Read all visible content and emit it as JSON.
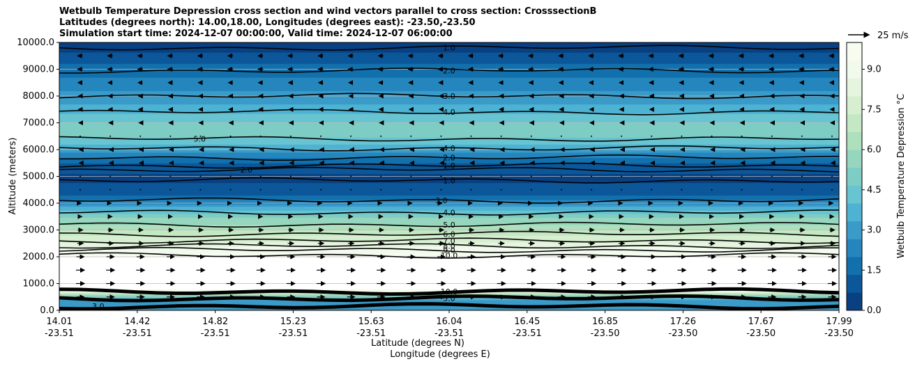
{
  "chart_data": {
    "type": "heatmap",
    "title_lines": [
      "Wetbulb Temperature Depression cross section and wind vectors parallel to cross section: CrosssectionB",
      "Latitudes (degrees north): 14.00,18.00, Longitudes (degrees east): -23.50,-23.50",
      "Simulation start time: 2024-12-07 00:00:00, Valid time: 2024-12-07 06:00:00"
    ],
    "ylabel": "Altitude (meters)",
    "xlabel_lat": "Latitude (degrees N)",
    "xlabel_lon": "Longitude (degrees E)",
    "ylim": [
      0,
      10000
    ],
    "yticks": [
      "0.0",
      "1000.0",
      "2000.0",
      "3000.0",
      "4000.0",
      "5000.0",
      "6000.0",
      "7000.0",
      "8000.0",
      "9000.0",
      "10000.0"
    ],
    "xticks": [
      {
        "lat": "14.01",
        "lon": "-23.51"
      },
      {
        "lat": "14.42",
        "lon": "-23.51"
      },
      {
        "lat": "14.82",
        "lon": "-23.51"
      },
      {
        "lat": "15.23",
        "lon": "-23.51"
      },
      {
        "lat": "15.63",
        "lon": "-23.51"
      },
      {
        "lat": "16.04",
        "lon": "-23.51"
      },
      {
        "lat": "16.45",
        "lon": "-23.51"
      },
      {
        "lat": "16.85",
        "lon": "-23.50"
      },
      {
        "lat": "17.26",
        "lon": "-23.50"
      },
      {
        "lat": "17.67",
        "lon": "-23.50"
      },
      {
        "lat": "17.99",
        "lon": "-23.50"
      }
    ],
    "colorbar": {
      "label": "Wetbulb Temperature Depression °C",
      "range": [
        0,
        10
      ],
      "ticks": [
        "0.0",
        "1.5",
        "3.0",
        "4.5",
        "6.0",
        "7.5",
        "9.0"
      ],
      "colors": [
        "#084081",
        "#0b5799",
        "#1270ad",
        "#2586be",
        "#3a9bc9",
        "#4eb2d3",
        "#67c4d0",
        "#7ecdc4",
        "#97d6be",
        "#aee0bd",
        "#c3e8c3",
        "#d6efd0",
        "#e6f5df",
        "#f2faed",
        "#f7fcf0"
      ]
    },
    "wind_key": "25 m/s",
    "bands": [
      {
        "alt": 0,
        "v": 2.7
      },
      {
        "alt": 400,
        "v": 3.0
      },
      {
        "alt": 800,
        "v": 10
      },
      {
        "alt": 2000,
        "v": 10
      },
      {
        "alt": 2300,
        "v": 8.8
      },
      {
        "alt": 2800,
        "v": 7.2
      },
      {
        "alt": 3400,
        "v": 5.5
      },
      {
        "alt": 3800,
        "v": 3.6
      },
      {
        "alt": 4300,
        "v": 1.2
      },
      {
        "alt": 5000,
        "v": 0.4
      },
      {
        "alt": 5600,
        "v": 1.5
      },
      {
        "alt": 6200,
        "v": 4.2
      },
      {
        "alt": 6600,
        "v": 4.9
      },
      {
        "alt": 7100,
        "v": 4.6
      },
      {
        "alt": 7600,
        "v": 3.5
      },
      {
        "alt": 8200,
        "v": 2.6
      },
      {
        "alt": 8800,
        "v": 1.9
      },
      {
        "alt": 9300,
        "v": 1.2
      },
      {
        "alt": 9700,
        "v": 0.6
      },
      {
        "alt": 10000,
        "v": 0.4
      }
    ],
    "contours": [
      {
        "label": "1.0",
        "alt": 9800,
        "lx": 0.5
      },
      {
        "label": "2.0",
        "alt": 8950,
        "lx": 0.5
      },
      {
        "label": "3.0",
        "alt": 8000,
        "lx": 0.5
      },
      {
        "label": "4.0",
        "alt": 7400,
        "lx": 0.5
      },
      {
        "label": "5.0",
        "alt": 6400,
        "lx": 0.18
      },
      {
        "label": "4.0",
        "alt": 6050,
        "lx": 0.5
      },
      {
        "label": "2.0",
        "alt": 5700,
        "lx": 0.5
      },
      {
        "label": "1.0",
        "alt": 5400,
        "lx": 0.5
      },
      {
        "label": "2.0",
        "alt": 5250,
        "lx": 0.24
      },
      {
        "label": "1.0",
        "alt": 4850,
        "lx": 0.5
      },
      {
        "label": "3.0",
        "alt": 4100,
        "lx": 0.49
      },
      {
        "label": "4.0",
        "alt": 3650,
        "lx": 0.5
      },
      {
        "label": "5.0",
        "alt": 3200,
        "lx": 0.5
      },
      {
        "label": "6.0",
        "alt": 2850,
        "lx": 0.5
      },
      {
        "label": "7.0",
        "alt": 2600,
        "lx": 0.5
      },
      {
        "label": "8.0",
        "alt": 2400,
        "lx": 0.5
      },
      {
        "label": "9.0",
        "alt": 2250,
        "lx": 0.5
      },
      {
        "label": "10.0",
        "alt": 2050,
        "lx": 0.5
      },
      {
        "label": "10.0",
        "alt": 700,
        "lx": 0.5
      },
      {
        "label": "5.0",
        "alt": 450,
        "lx": 0.5
      },
      {
        "label": "3.0",
        "alt": 150,
        "lx": 0.05
      }
    ],
    "wind_rows": [
      {
        "alt": 9500,
        "u": -6
      },
      {
        "alt": 9000,
        "u": -6
      },
      {
        "alt": 8500,
        "u": -5
      },
      {
        "alt": 8000,
        "u": -4
      },
      {
        "alt": 7500,
        "u": -4
      },
      {
        "alt": 7000,
        "u": -3
      },
      {
        "alt": 6500,
        "u": -1
      },
      {
        "alt": 6000,
        "u": -2
      },
      {
        "alt": 5500,
        "u": -2
      },
      {
        "alt": 5000,
        "u": -1
      },
      {
        "alt": 4500,
        "u": 1
      },
      {
        "alt": 4000,
        "u": 2
      },
      {
        "alt": 3500,
        "u": 4
      },
      {
        "alt": 3000,
        "u": 6
      },
      {
        "alt": 2500,
        "u": 7
      },
      {
        "alt": 2000,
        "u": 9
      },
      {
        "alt": 1500,
        "u": 10
      },
      {
        "alt": 1000,
        "u": 10
      },
      {
        "alt": 500,
        "u": 9
      }
    ]
  }
}
